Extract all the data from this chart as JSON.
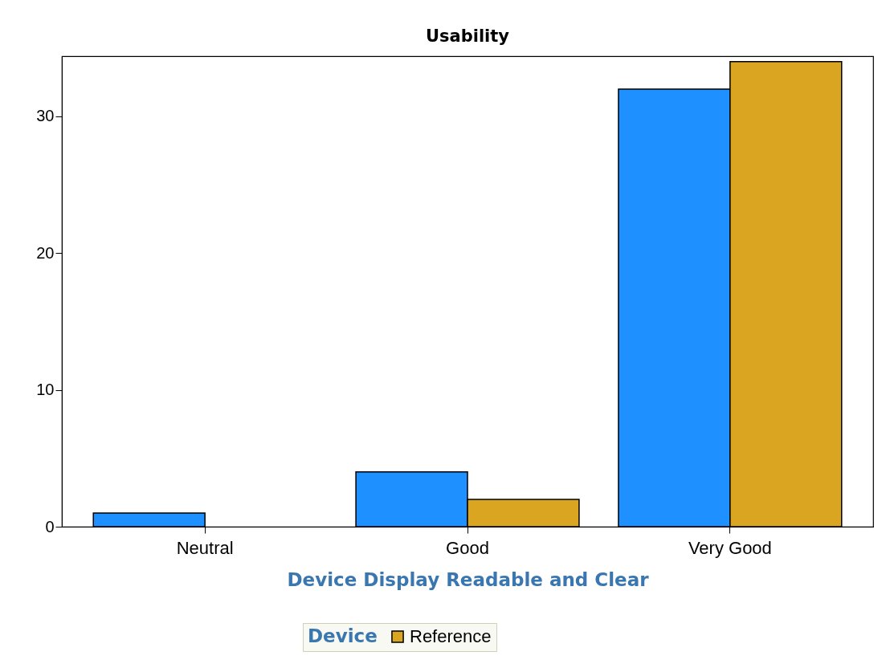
{
  "chart_data": {
    "type": "bar",
    "title": "Usability",
    "xlabel": "Device Display Readable and Clear",
    "legend_title": "Device",
    "categories": [
      "Neutral",
      "Good",
      "Very Good"
    ],
    "series": [
      {
        "color": "#1e90ff",
        "values": [
          1,
          4,
          32
        ]
      },
      {
        "name": "Reference",
        "color": "#daa520",
        "values": [
          null,
          2,
          34
        ]
      }
    ],
    "ylim": [
      0,
      34.4
    ],
    "yticks": [
      0,
      10,
      20,
      30
    ],
    "grid": false,
    "legend": "bottom"
  }
}
